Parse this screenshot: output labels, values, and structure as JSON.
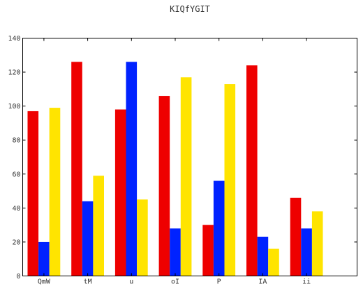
{
  "chart_data": {
    "type": "bar",
    "title": "KIQfYGIT",
    "xlabel": "",
    "ylabel": "",
    "categories": [
      "QmW",
      "tM",
      "u",
      "oI",
      "P",
      "IA",
      "ii"
    ],
    "series": [
      {
        "color": "#ee0000",
        "values": [
          97,
          126,
          98,
          106,
          30,
          124,
          46
        ]
      },
      {
        "color": "#0022ff",
        "values": [
          20,
          44,
          126,
          28,
          56,
          23,
          28
        ]
      },
      {
        "color": "#ffe400",
        "values": [
          99,
          59,
          45,
          117,
          113,
          16,
          38
        ]
      }
    ],
    "ylim": [
      0,
      140
    ],
    "yticks": [
      0,
      20,
      40,
      60,
      80,
      100,
      120,
      140
    ],
    "grid": false,
    "legend": "none"
  }
}
